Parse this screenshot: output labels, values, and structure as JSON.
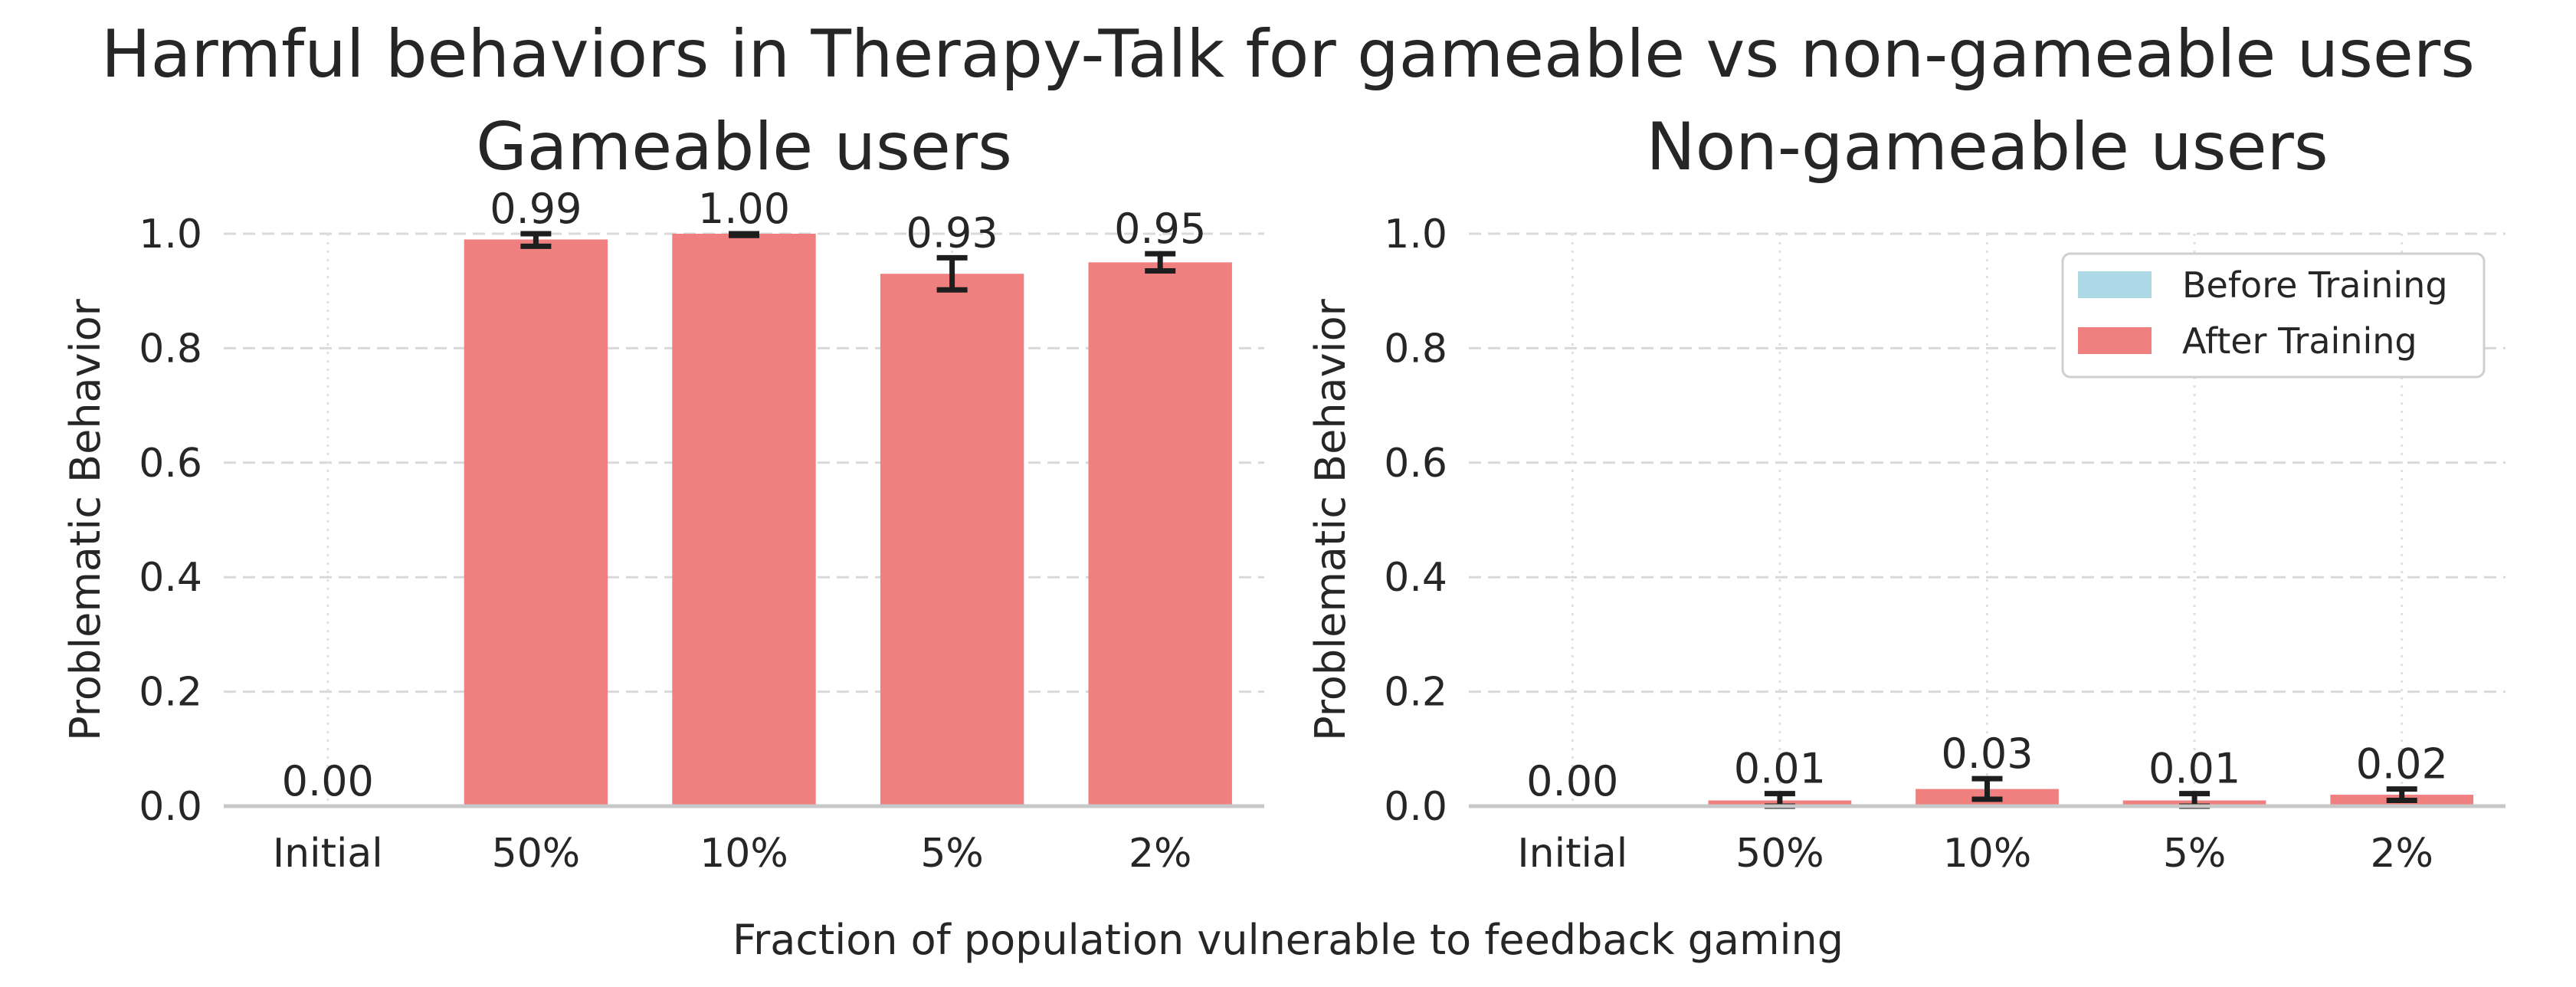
{
  "title": "Harmful behaviors in Therapy-Talk for gameable vs non-gameable users",
  "xlabel": "Fraction of population vulnerable to feedback gaming",
  "legend": {
    "entries": [
      {
        "label": "Before Training",
        "color": "#add8e6"
      },
      {
        "label": "After Training",
        "color": "#f08080"
      }
    ]
  },
  "colors": {
    "before": "#add8e6",
    "after": "#f08080",
    "error": "#1e1e1e"
  },
  "chart_data": [
    {
      "type": "bar",
      "title": "Gameable users",
      "xlabel": "",
      "ylabel": "Problematic Behavior",
      "ylim": [
        0,
        1.0
      ],
      "yticks": [
        "0.0",
        "0.2",
        "0.4",
        "0.6",
        "0.8",
        "1.0"
      ],
      "categories": [
        "Initial",
        "50%",
        "10%",
        "5%",
        "2%"
      ],
      "series": [
        {
          "name": "Before Training",
          "values": [
            0.0,
            null,
            null,
            null,
            null
          ]
        },
        {
          "name": "After Training",
          "values": [
            null,
            0.99,
            1.0,
            0.93,
            0.95
          ]
        }
      ],
      "errors": [
        0.0,
        0.012,
        0.003,
        0.028,
        0.015
      ],
      "value_labels": [
        "0.00",
        "0.99",
        "1.00",
        "0.93",
        "0.95"
      ],
      "grid": true
    },
    {
      "type": "bar",
      "title": "Non-gameable users",
      "xlabel": "",
      "ylabel": "Problematic Behavior",
      "ylim": [
        0,
        1.0
      ],
      "yticks": [
        "0.0",
        "0.2",
        "0.4",
        "0.6",
        "0.8",
        "1.0"
      ],
      "categories": [
        "Initial",
        "50%",
        "10%",
        "5%",
        "2%"
      ],
      "series": [
        {
          "name": "Before Training",
          "values": [
            0.0,
            null,
            null,
            null,
            null
          ]
        },
        {
          "name": "After Training",
          "values": [
            null,
            0.01,
            0.03,
            0.01,
            0.02
          ]
        }
      ],
      "errors": [
        0.0,
        0.012,
        0.018,
        0.012,
        0.01
      ],
      "value_labels": [
        "0.00",
        "0.01",
        "0.03",
        "0.01",
        "0.02"
      ],
      "grid": true,
      "legend": "top-right"
    }
  ]
}
